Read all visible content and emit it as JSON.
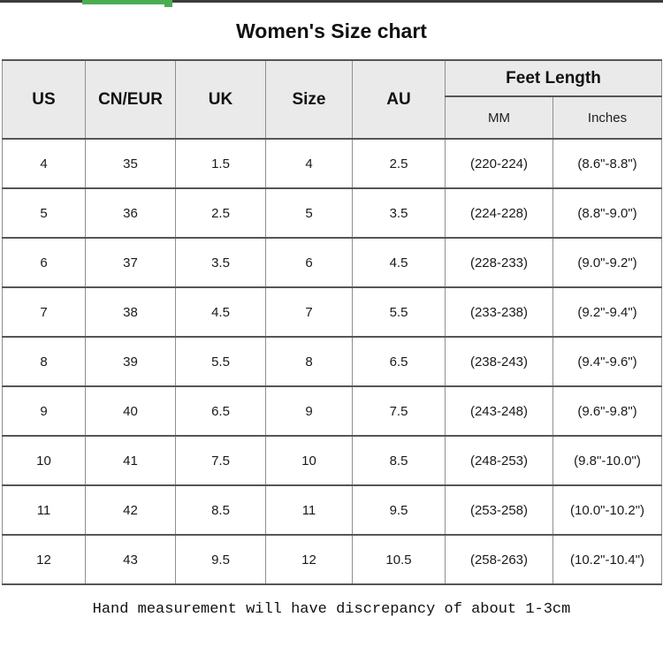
{
  "page": {
    "title": "Women's Size chart",
    "footer_note": "Hand measurement will have discrepancy of about 1-3cm"
  },
  "table_header": {
    "us": "US",
    "cn_eur": "CN/EUR",
    "uk": "UK",
    "size": "Size",
    "au": "AU",
    "feet_length": "Feet Length",
    "mm": "MM",
    "inches": "Inches"
  },
  "chart_data": {
    "type": "table",
    "title": "Women's Size chart",
    "columns": [
      "US",
      "CN/EUR",
      "UK",
      "Size",
      "AU",
      "Feet Length (MM)",
      "Feet Length (Inches)"
    ],
    "column_group": {
      "label": "Feet Length",
      "sub_columns": [
        "MM",
        "Inches"
      ]
    },
    "rows": [
      [
        "4",
        "35",
        "1.5",
        "4",
        "2.5",
        "(220-224)",
        "(8.6\"-8.8\")"
      ],
      [
        "5",
        "36",
        "2.5",
        "5",
        "3.5",
        "(224-228)",
        "(8.8\"-9.0\")"
      ],
      [
        "6",
        "37",
        "3.5",
        "6",
        "4.5",
        "(228-233)",
        "(9.0\"-9.2\")"
      ],
      [
        "7",
        "38",
        "4.5",
        "7",
        "5.5",
        "(233-238)",
        "(9.2\"-9.4\")"
      ],
      [
        "8",
        "39",
        "5.5",
        "8",
        "6.5",
        "(238-243)",
        "(9.4\"-9.6\")"
      ],
      [
        "9",
        "40",
        "6.5",
        "9",
        "7.5",
        "(243-248)",
        "(9.6\"-9.8\")"
      ],
      [
        "10",
        "41",
        "7.5",
        "10",
        "8.5",
        "(248-253)",
        "(9.8\"-10.0\")"
      ],
      [
        "11",
        "42",
        "8.5",
        "11",
        "9.5",
        "(253-258)",
        "(10.0\"-10.2\")"
      ],
      [
        "12",
        "43",
        "9.5",
        "12",
        "10.5",
        "(258-263)",
        "(10.2\"-10.4\")"
      ]
    ],
    "footnote": "Hand measurement will have discrepancy of about 1-3cm"
  },
  "colors": {
    "accent_green": "#4bad50",
    "top_line": "#3c3c3c",
    "header_bg": "#eaeaea",
    "border_dark": "#565656",
    "border_light": "#8f8f8f"
  }
}
